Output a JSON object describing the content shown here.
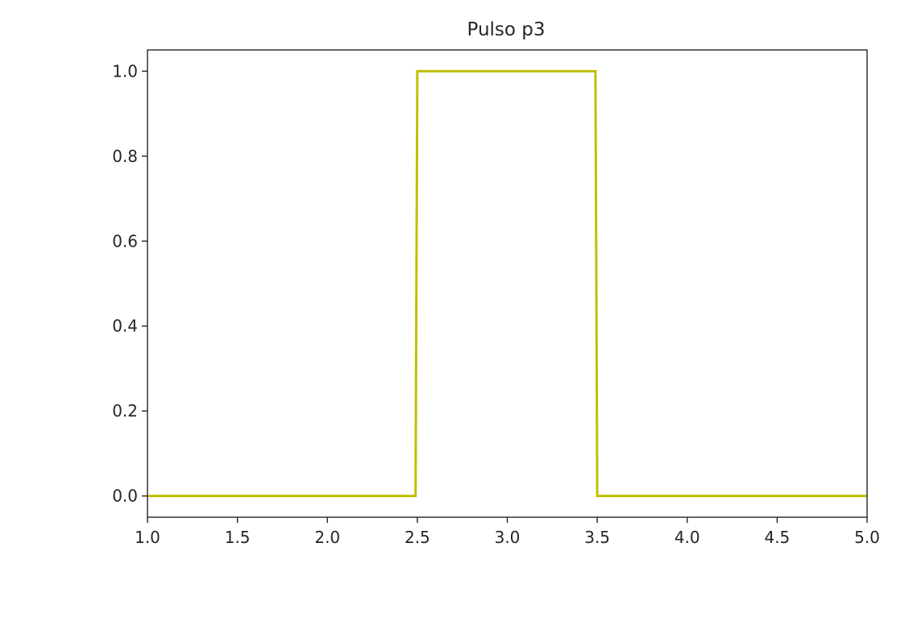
{
  "chart_data": {
    "type": "line",
    "title": "Pulso p3",
    "xlabel": "",
    "ylabel": "",
    "xlim": [
      1.0,
      5.0
    ],
    "ylim": [
      -0.05,
      1.05
    ],
    "grid": false,
    "x_ticks": [
      1.0,
      1.5,
      2.0,
      2.5,
      3.0,
      3.5,
      4.0,
      4.5,
      5.0
    ],
    "x_tick_labels": [
      "1.0",
      "1.5",
      "2.0",
      "2.5",
      "3.0",
      "3.5",
      "4.0",
      "4.5",
      "5.0"
    ],
    "y_ticks": [
      0.0,
      0.2,
      0.4,
      0.6,
      0.8,
      1.0
    ],
    "y_tick_labels": [
      "0.0",
      "0.2",
      "0.4",
      "0.6",
      "0.8",
      "1.0"
    ],
    "series": [
      {
        "color": "#bfbf00",
        "x": [
          1.0,
          2.49,
          2.5,
          3.49,
          3.5,
          5.0
        ],
        "y": [
          0,
          0,
          1,
          1,
          0,
          0
        ]
      }
    ]
  }
}
